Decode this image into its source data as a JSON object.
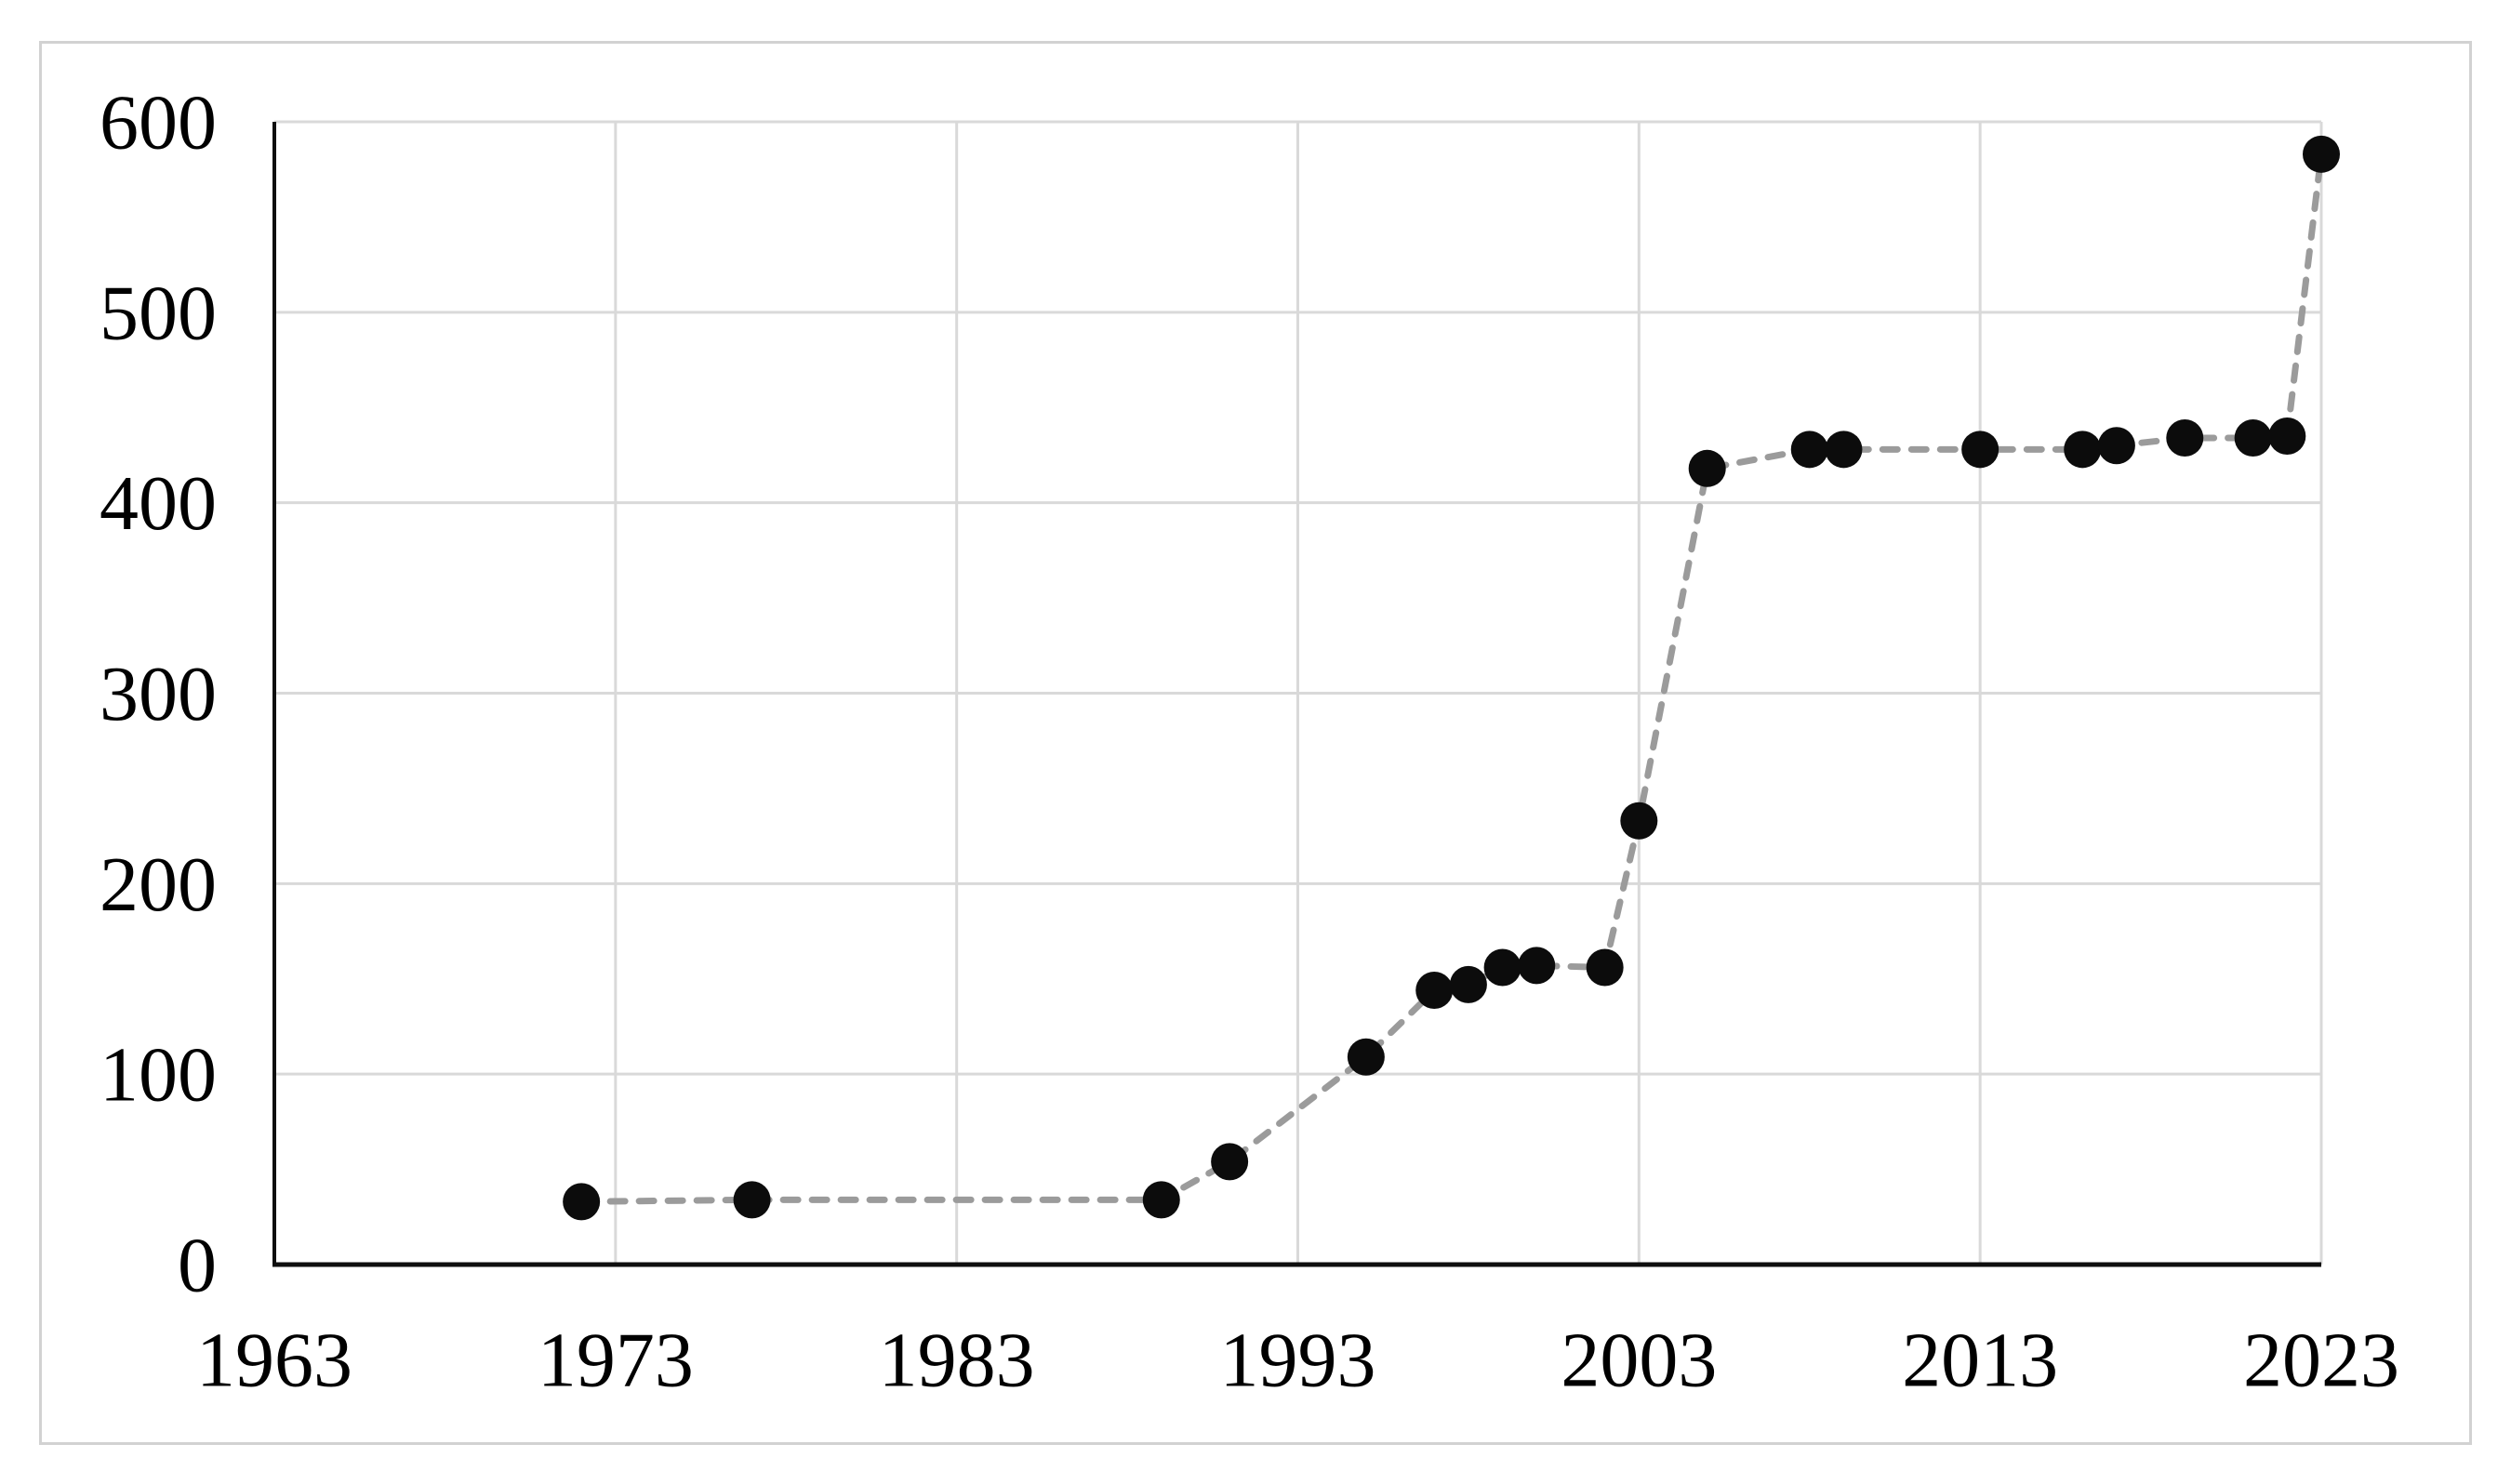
{
  "figure": {
    "background": "#ffffff",
    "border_color": "#d2d2d2"
  },
  "chart_data": {
    "type": "scatter",
    "title": "",
    "subtitle": "",
    "xlabel": "",
    "ylabel": "",
    "legend": "none",
    "grid": true,
    "line_style": "dashed",
    "marker": "circle",
    "xlim": [
      1963,
      2023
    ],
    "ylim": [
      0,
      600
    ],
    "x_ticks": [
      1963,
      1973,
      1983,
      1993,
      2003,
      2013,
      2023
    ],
    "y_ticks": [
      0,
      100,
      200,
      300,
      400,
      500,
      600
    ],
    "colors": {
      "marker": "#0c0c0c",
      "line": "#9b9b9b",
      "gridline": "#d9d9d9",
      "axis": "#0f0f0f",
      "tick_text": "#000000"
    },
    "points": [
      {
        "x": 1972,
        "y": 33
      },
      {
        "x": 1977,
        "y": 34
      },
      {
        "x": 1989,
        "y": 34
      },
      {
        "x": 1991,
        "y": 54
      },
      {
        "x": 1995,
        "y": 109
      },
      {
        "x": 1997,
        "y": 144
      },
      {
        "x": 1998,
        "y": 147
      },
      {
        "x": 1999,
        "y": 156
      },
      {
        "x": 2000,
        "y": 157
      },
      {
        "x": 2002,
        "y": 156
      },
      {
        "x": 2003,
        "y": 233
      },
      {
        "x": 2005,
        "y": 418
      },
      {
        "x": 2008,
        "y": 428
      },
      {
        "x": 2009,
        "y": 428
      },
      {
        "x": 2013,
        "y": 428
      },
      {
        "x": 2016,
        "y": 428
      },
      {
        "x": 2017,
        "y": 430
      },
      {
        "x": 2019,
        "y": 434
      },
      {
        "x": 2021,
        "y": 434
      },
      {
        "x": 2022,
        "y": 435
      },
      {
        "x": 2023,
        "y": 583
      }
    ]
  }
}
